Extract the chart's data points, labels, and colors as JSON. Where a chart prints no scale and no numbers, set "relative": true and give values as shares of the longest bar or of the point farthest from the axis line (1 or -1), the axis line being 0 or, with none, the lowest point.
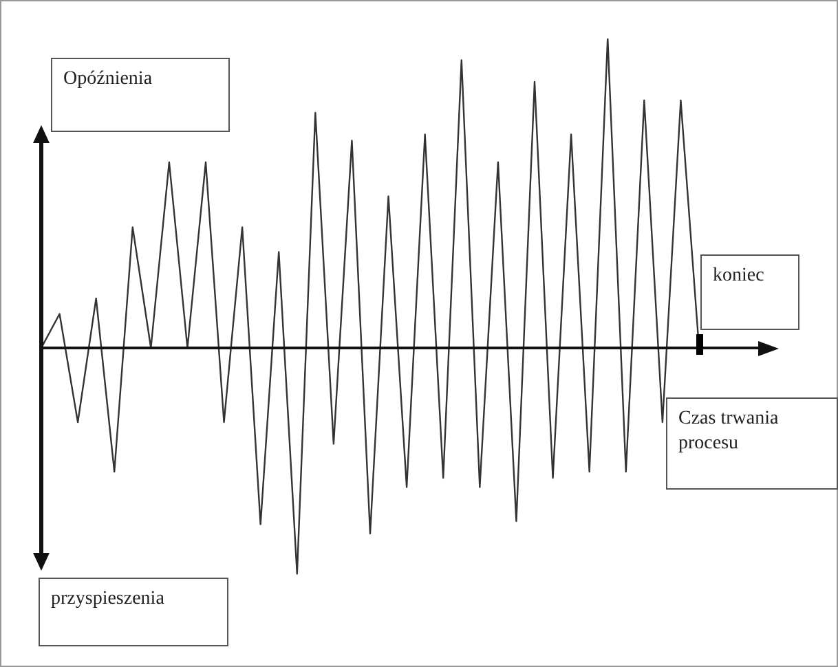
{
  "chart_data": {
    "type": "line",
    "relative": true,
    "color": "#333333",
    "marker": "none",
    "legend": false,
    "xlabel": "Czas trwania procesu",
    "annotations": [
      "Opóźnienia",
      "przyspieszenia",
      "koniec"
    ],
    "categories": [
      null,
      null,
      null,
      null,
      null,
      null,
      null,
      null,
      null,
      null,
      null,
      null,
      null,
      null,
      null,
      null,
      null,
      null,
      null,
      null,
      null,
      null,
      null,
      null,
      null,
      null,
      null,
      null,
      null,
      null,
      null,
      null,
      null,
      null,
      null,
      null,
      null
    ],
    "values": [
      0,
      0.11,
      -0.24,
      0.16,
      -0.4,
      0.39,
      0,
      0.6,
      0,
      0.6,
      -0.24,
      0.39,
      -0.57,
      0.31,
      -0.73,
      0.76,
      -0.31,
      0.67,
      -0.6,
      0.49,
      -0.45,
      0.69,
      -0.42,
      0.93,
      -0.45,
      0.6,
      -0.56,
      0.86,
      -0.42,
      0.69,
      -0.4,
      1,
      -0.4,
      0.8,
      -0.24,
      0.8,
      0
    ]
  }
}
